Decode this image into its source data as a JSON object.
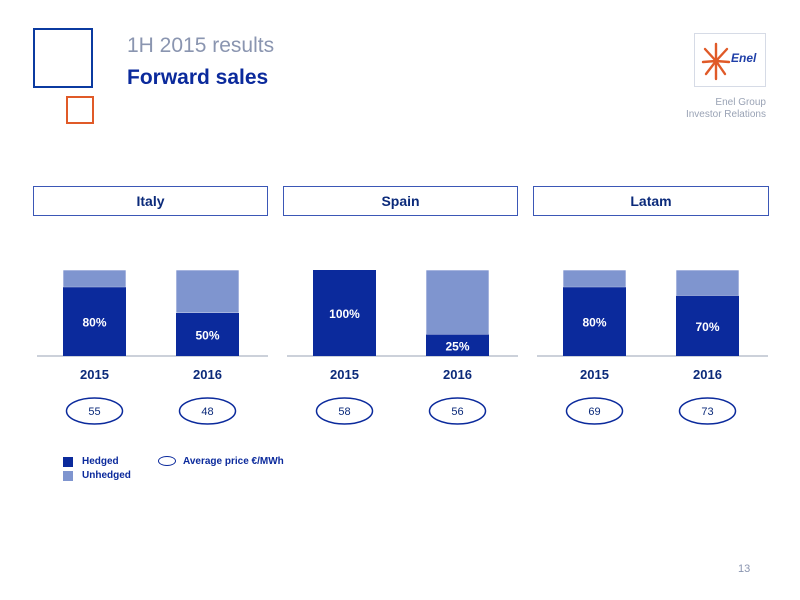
{
  "header": {
    "subtitle": "1H 2015 results",
    "title": "Forward sales",
    "logo_text": "Enel",
    "group_line1": "Enel Group",
    "group_line2": "Investor Relations"
  },
  "colors": {
    "hedged": "#0b2a9c",
    "unhedged": "#7f95cf",
    "accent_orange": "#e05a28",
    "brand_blue": "#0b3aa0"
  },
  "chart_data": {
    "type": "bar",
    "stacked": true,
    "panels": [
      {
        "region": "Italy",
        "categories": [
          "2015",
          "2016"
        ],
        "hedged_labels": [
          "80%",
          "50%"
        ],
        "series": [
          {
            "name": "Hedged",
            "values": [
              80,
              50
            ]
          },
          {
            "name": "Unhedged",
            "values": [
              20,
              50
            ]
          }
        ],
        "average_price": [
          55,
          48
        ]
      },
      {
        "region": "Spain",
        "categories": [
          "2015",
          "2016"
        ],
        "hedged_labels": [
          "100%",
          "25%"
        ],
        "series": [
          {
            "name": "Hedged",
            "values": [
              100,
              25
            ]
          },
          {
            "name": "Unhedged",
            "values": [
              0,
              75
            ]
          }
        ],
        "average_price": [
          58,
          56
        ]
      },
      {
        "region": "Latam",
        "categories": [
          "2015",
          "2016"
        ],
        "hedged_labels": [
          "80%",
          "70%"
        ],
        "series": [
          {
            "name": "Hedged",
            "values": [
              80,
              70
            ]
          },
          {
            "name": "Unhedged",
            "values": [
              20,
              30
            ]
          }
        ],
        "average_price": [
          69,
          73
        ]
      }
    ],
    "ylim": [
      0,
      100
    ],
    "legend": {
      "hedged": "Hedged",
      "unhedged": "Unhedged",
      "average_price": "Average price €/MWh"
    }
  },
  "page_number": "13"
}
